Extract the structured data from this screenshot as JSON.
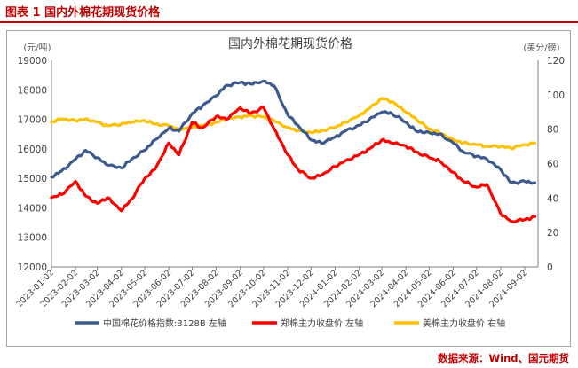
{
  "figure": {
    "caption": "图表 1  国内外棉花期现货价格",
    "source": "数据来源：Wind、国元期货"
  },
  "colors": {
    "accent": "#c00000",
    "cn_index": "#3c5a8c",
    "zce": "#ff0000",
    "ice": "#ffc000"
  },
  "chart_data": {
    "type": "line",
    "title": "国内外棉花期现货价格",
    "left_unit": "(元/吨)",
    "right_unit": "(美分/磅)",
    "left_ylim": [
      12000,
      19000
    ],
    "left_ticks": [
      "19000",
      "18000",
      "17000",
      "16000",
      "15000",
      "14000",
      "13000",
      "12000"
    ],
    "right_ylim": [
      0,
      120
    ],
    "right_ticks": [
      "120",
      "100",
      "80",
      "60",
      "40",
      "20",
      "0"
    ],
    "x_ticks": [
      "2023-01-02",
      "2023-02-02",
      "2023-03-02",
      "2023-04-02",
      "2023-05-02",
      "2023-06-02",
      "2023-07-02",
      "2023-08-02",
      "2023-09-02",
      "2023-10-02",
      "2023-11-02",
      "2023-12-02",
      "2024-01-02",
      "2024-02-02",
      "2024-03-02",
      "2024-04-02",
      "2024-05-02",
      "2024-06-02",
      "2024-07-02",
      "2024-08-02",
      "2024-09-02"
    ],
    "grid": false,
    "legend_position": "bottom",
    "series": [
      {
        "name": "中国棉花价格指数:3128B  左轴",
        "axis": "left",
        "color": "#3c5a8c",
        "points": [
          [
            "2023-01-02",
            15050
          ],
          [
            "2023-01-15",
            15250
          ],
          [
            "2023-02-02",
            15650
          ],
          [
            "2023-02-15",
            15950
          ],
          [
            "2023-03-02",
            15700
          ],
          [
            "2023-03-15",
            15450
          ],
          [
            "2023-04-02",
            15350
          ],
          [
            "2023-04-15",
            15650
          ],
          [
            "2023-05-02",
            15950
          ],
          [
            "2023-05-15",
            16300
          ],
          [
            "2023-06-02",
            16700
          ],
          [
            "2023-06-15",
            16600
          ],
          [
            "2023-07-02",
            17200
          ],
          [
            "2023-07-15",
            17450
          ],
          [
            "2023-08-02",
            17800
          ],
          [
            "2023-08-15",
            18150
          ],
          [
            "2023-09-02",
            18250
          ],
          [
            "2023-09-15",
            18200
          ],
          [
            "2023-10-02",
            18300
          ],
          [
            "2023-10-15",
            18150
          ],
          [
            "2023-11-02",
            17150
          ],
          [
            "2023-11-15",
            16800
          ],
          [
            "2023-12-02",
            16300
          ],
          [
            "2023-12-15",
            16200
          ],
          [
            "2024-01-02",
            16400
          ],
          [
            "2024-01-15",
            16600
          ],
          [
            "2024-02-02",
            16800
          ],
          [
            "2024-02-15",
            17000
          ],
          [
            "2024-03-02",
            17250
          ],
          [
            "2024-03-15",
            17200
          ],
          [
            "2024-04-02",
            16900
          ],
          [
            "2024-04-15",
            16600
          ],
          [
            "2024-05-02",
            16550
          ],
          [
            "2024-05-15",
            16500
          ],
          [
            "2024-06-02",
            16200
          ],
          [
            "2024-06-15",
            15900
          ],
          [
            "2024-07-02",
            15750
          ],
          [
            "2024-07-15",
            15650
          ],
          [
            "2024-08-02",
            15300
          ],
          [
            "2024-08-15",
            14850
          ],
          [
            "2024-09-02",
            14900
          ],
          [
            "2024-09-15",
            14850
          ]
        ]
      },
      {
        "name": "郑棉主力收盘价  左轴",
        "axis": "left",
        "color": "#ff0000",
        "points": [
          [
            "2023-01-02",
            14350
          ],
          [
            "2023-01-15",
            14450
          ],
          [
            "2023-02-02",
            14900
          ],
          [
            "2023-02-15",
            14400
          ],
          [
            "2023-03-02",
            14150
          ],
          [
            "2023-03-15",
            14350
          ],
          [
            "2023-04-02",
            13900
          ],
          [
            "2023-04-15",
            14300
          ],
          [
            "2023-05-02",
            15000
          ],
          [
            "2023-05-15",
            15300
          ],
          [
            "2023-06-02",
            16200
          ],
          [
            "2023-06-15",
            15800
          ],
          [
            "2023-07-02",
            16900
          ],
          [
            "2023-07-15",
            16700
          ],
          [
            "2023-08-02",
            17100
          ],
          [
            "2023-08-15",
            17000
          ],
          [
            "2023-09-02",
            17400
          ],
          [
            "2023-09-15",
            17200
          ],
          [
            "2023-10-02",
            17400
          ],
          [
            "2023-10-15",
            16700
          ],
          [
            "2023-11-02",
            15800
          ],
          [
            "2023-11-15",
            15300
          ],
          [
            "2023-12-02",
            15000
          ],
          [
            "2023-12-15",
            15100
          ],
          [
            "2024-01-02",
            15400
          ],
          [
            "2024-01-15",
            15600
          ],
          [
            "2024-02-02",
            15800
          ],
          [
            "2024-02-15",
            16000
          ],
          [
            "2024-03-02",
            16300
          ],
          [
            "2024-03-15",
            16200
          ],
          [
            "2024-04-02",
            16100
          ],
          [
            "2024-04-15",
            15900
          ],
          [
            "2024-05-02",
            15700
          ],
          [
            "2024-05-15",
            15600
          ],
          [
            "2024-06-02",
            15200
          ],
          [
            "2024-06-15",
            14900
          ],
          [
            "2024-07-02",
            14700
          ],
          [
            "2024-07-15",
            14800
          ],
          [
            "2024-08-02",
            13800
          ],
          [
            "2024-08-15",
            13550
          ],
          [
            "2024-09-02",
            13600
          ],
          [
            "2024-09-15",
            13700
          ]
        ]
      },
      {
        "name": "美棉主力收盘价  右轴",
        "axis": "right",
        "color": "#ffc000",
        "points": [
          [
            "2023-01-02",
            84
          ],
          [
            "2023-01-15",
            86
          ],
          [
            "2023-02-02",
            85
          ],
          [
            "2023-02-15",
            86
          ],
          [
            "2023-03-02",
            84
          ],
          [
            "2023-03-15",
            82
          ],
          [
            "2023-04-02",
            83
          ],
          [
            "2023-04-15",
            84
          ],
          [
            "2023-05-02",
            85
          ],
          [
            "2023-05-15",
            83
          ],
          [
            "2023-06-02",
            82
          ],
          [
            "2023-06-15",
            80
          ],
          [
            "2023-07-02",
            81
          ],
          [
            "2023-07-15",
            82
          ],
          [
            "2023-08-02",
            84
          ],
          [
            "2023-08-15",
            86
          ],
          [
            "2023-09-02",
            87
          ],
          [
            "2023-09-15",
            88
          ],
          [
            "2023-10-02",
            87
          ],
          [
            "2023-10-15",
            85
          ],
          [
            "2023-11-02",
            81
          ],
          [
            "2023-11-15",
            79
          ],
          [
            "2023-12-02",
            78
          ],
          [
            "2023-12-15",
            79
          ],
          [
            "2024-01-02",
            81
          ],
          [
            "2024-01-15",
            84
          ],
          [
            "2024-02-02",
            88
          ],
          [
            "2024-02-15",
            92
          ],
          [
            "2024-03-02",
            98
          ],
          [
            "2024-03-15",
            96
          ],
          [
            "2024-04-02",
            90
          ],
          [
            "2024-04-15",
            86
          ],
          [
            "2024-05-02",
            80
          ],
          [
            "2024-05-15",
            78
          ],
          [
            "2024-06-02",
            74
          ],
          [
            "2024-06-15",
            72
          ],
          [
            "2024-07-02",
            71
          ],
          [
            "2024-07-15",
            70
          ],
          [
            "2024-08-02",
            70
          ],
          [
            "2024-08-15",
            69
          ],
          [
            "2024-09-02",
            71
          ],
          [
            "2024-09-15",
            72
          ]
        ]
      }
    ]
  }
}
